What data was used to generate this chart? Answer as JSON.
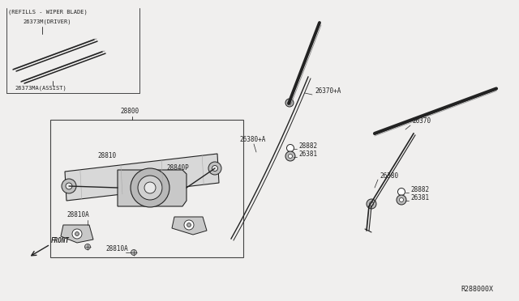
{
  "bg_color": "#f0efee",
  "line_color": "#444444",
  "dark_color": "#222222",
  "ref_code": "R288000X",
  "labels": {
    "refills_title": "(REFILLS - WIPER BLADE)",
    "driver": "26373M(DRIVER)",
    "assist": "26373MA(ASSIST)",
    "part_28800": "28800",
    "part_28810": "28810",
    "part_28810a1": "28810A",
    "part_28810a2": "28810A",
    "part_28840p": "28840P",
    "part_26380a": "26380+A",
    "part_26370a": "26370+A",
    "part_26370": "26370",
    "part_26380": "26380",
    "part_28882_1": "28882",
    "part_26381_1": "26381",
    "part_28882_2": "28882",
    "part_26381_2": "26381",
    "front_label": "FRONT"
  },
  "fs": 5.5,
  "fs_ref": 6.0
}
